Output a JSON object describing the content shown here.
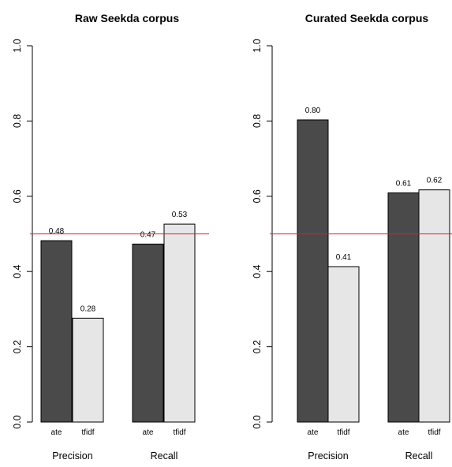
{
  "chart_data": [
    {
      "type": "bar",
      "title": "Raw Seekda corpus",
      "groups": [
        "Precision",
        "Recall"
      ],
      "categories": [
        "ate",
        "tfidf"
      ],
      "series": [
        {
          "values": [
            0.48,
            0.28
          ]
        },
        {
          "values": [
            0.47,
            0.53
          ]
        }
      ],
      "value_labels": [
        [
          "0.48",
          "0.28"
        ],
        [
          "0.47",
          "0.53"
        ]
      ],
      "plotted_values": [
        [
          0.482,
          0.276
        ],
        [
          0.473,
          0.526
        ]
      ],
      "reference_line": 0.5,
      "ylim": [
        0,
        1
      ],
      "yticks": [
        "0.0",
        "0.2",
        "0.4",
        "0.6",
        "0.8",
        "1.0"
      ],
      "xlabel": "",
      "ylabel": "",
      "grid": false,
      "colors": [
        "#4a4a4a",
        "#e6e6e6"
      ],
      "reference_line_color": "#e41a1c"
    },
    {
      "type": "bar",
      "title": "Curated Seekda corpus",
      "groups": [
        "Precision",
        "Recall"
      ],
      "categories": [
        "ate",
        "tfidf"
      ],
      "series": [
        {
          "values": [
            0.8,
            0.41
          ]
        },
        {
          "values": [
            0.61,
            0.62
          ]
        }
      ],
      "value_labels": [
        [
          "0.80",
          "0.41"
        ],
        [
          "0.61",
          "0.62"
        ]
      ],
      "plotted_values": [
        [
          0.803,
          0.413
        ],
        [
          0.609,
          0.617
        ]
      ],
      "reference_line": 0.5,
      "ylim": [
        0,
        1
      ],
      "yticks": [
        "0.0",
        "0.2",
        "0.4",
        "0.6",
        "0.8",
        "1.0"
      ],
      "xlabel": "",
      "ylabel": "",
      "grid": false,
      "colors": [
        "#4a4a4a",
        "#e6e6e6"
      ],
      "reference_line_color": "#e41a1c"
    }
  ]
}
